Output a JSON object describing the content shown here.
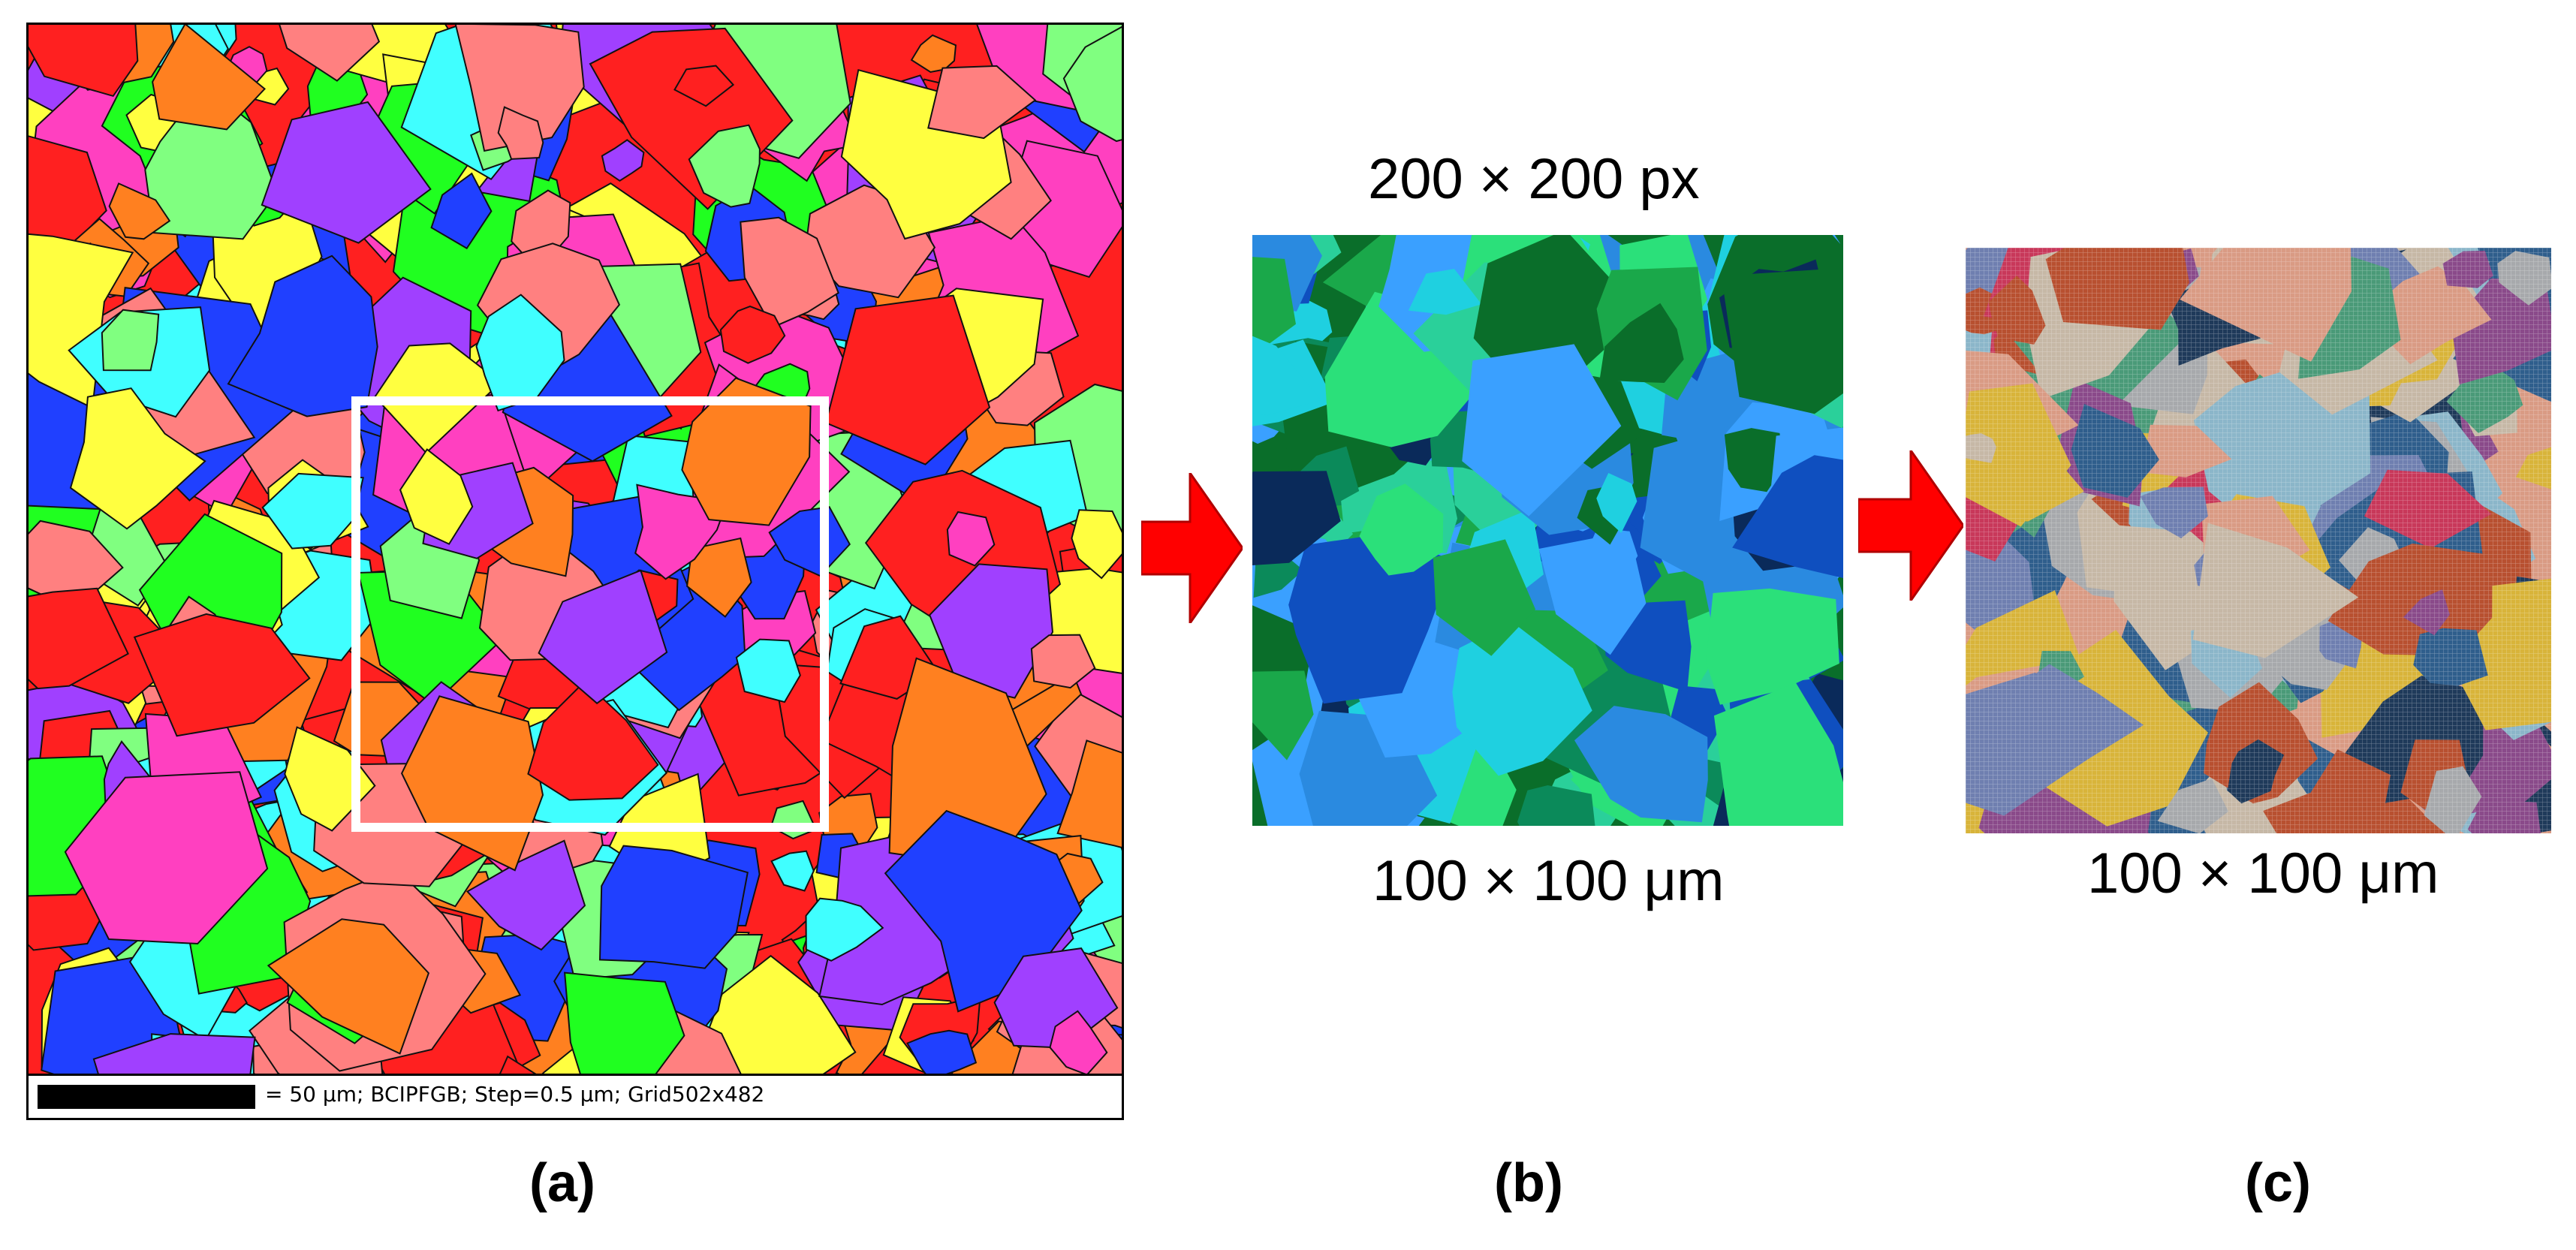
{
  "panel_a": {
    "scale_text": "= 50 μm; BCIPFGB; Step=0.5 μm; Grid502x482"
  },
  "panel_b": {
    "top_label": "200 × 200 px",
    "bottom_label": "100 × 100 μm"
  },
  "panel_c": {
    "bottom_label": "100 × 100 μm"
  },
  "captions": {
    "a": "(a)",
    "b": "(b)",
    "c": "(c)"
  },
  "colors": {
    "arrow": "#ff0000",
    "roi_box": "#ffffff",
    "ebsd_palette": [
      "#ff2020",
      "#20ff20",
      "#2040ff",
      "#ff40c0",
      "#40ffff",
      "#ffff40",
      "#ff8020",
      "#a040ff",
      "#80ff80",
      "#ff8080"
    ],
    "blue_green_palette": [
      "#0a6e2a",
      "#1aa84a",
      "#2be07a",
      "#0f4fbf",
      "#2a8ae0",
      "#1fd0e0",
      "#0a2a5a",
      "#2ad09a",
      "#3aa0ff",
      "#0b8a5a"
    ],
    "cluster_palette": [
      "#d99b84",
      "#a7a9ac",
      "#8bb6c9",
      "#c8385a",
      "#2f5e8c",
      "#d8b43a",
      "#4a9a78",
      "#8a4a8a",
      "#b85030",
      "#1f3a5a",
      "#6f7fb0",
      "#c6b8a6"
    ]
  }
}
